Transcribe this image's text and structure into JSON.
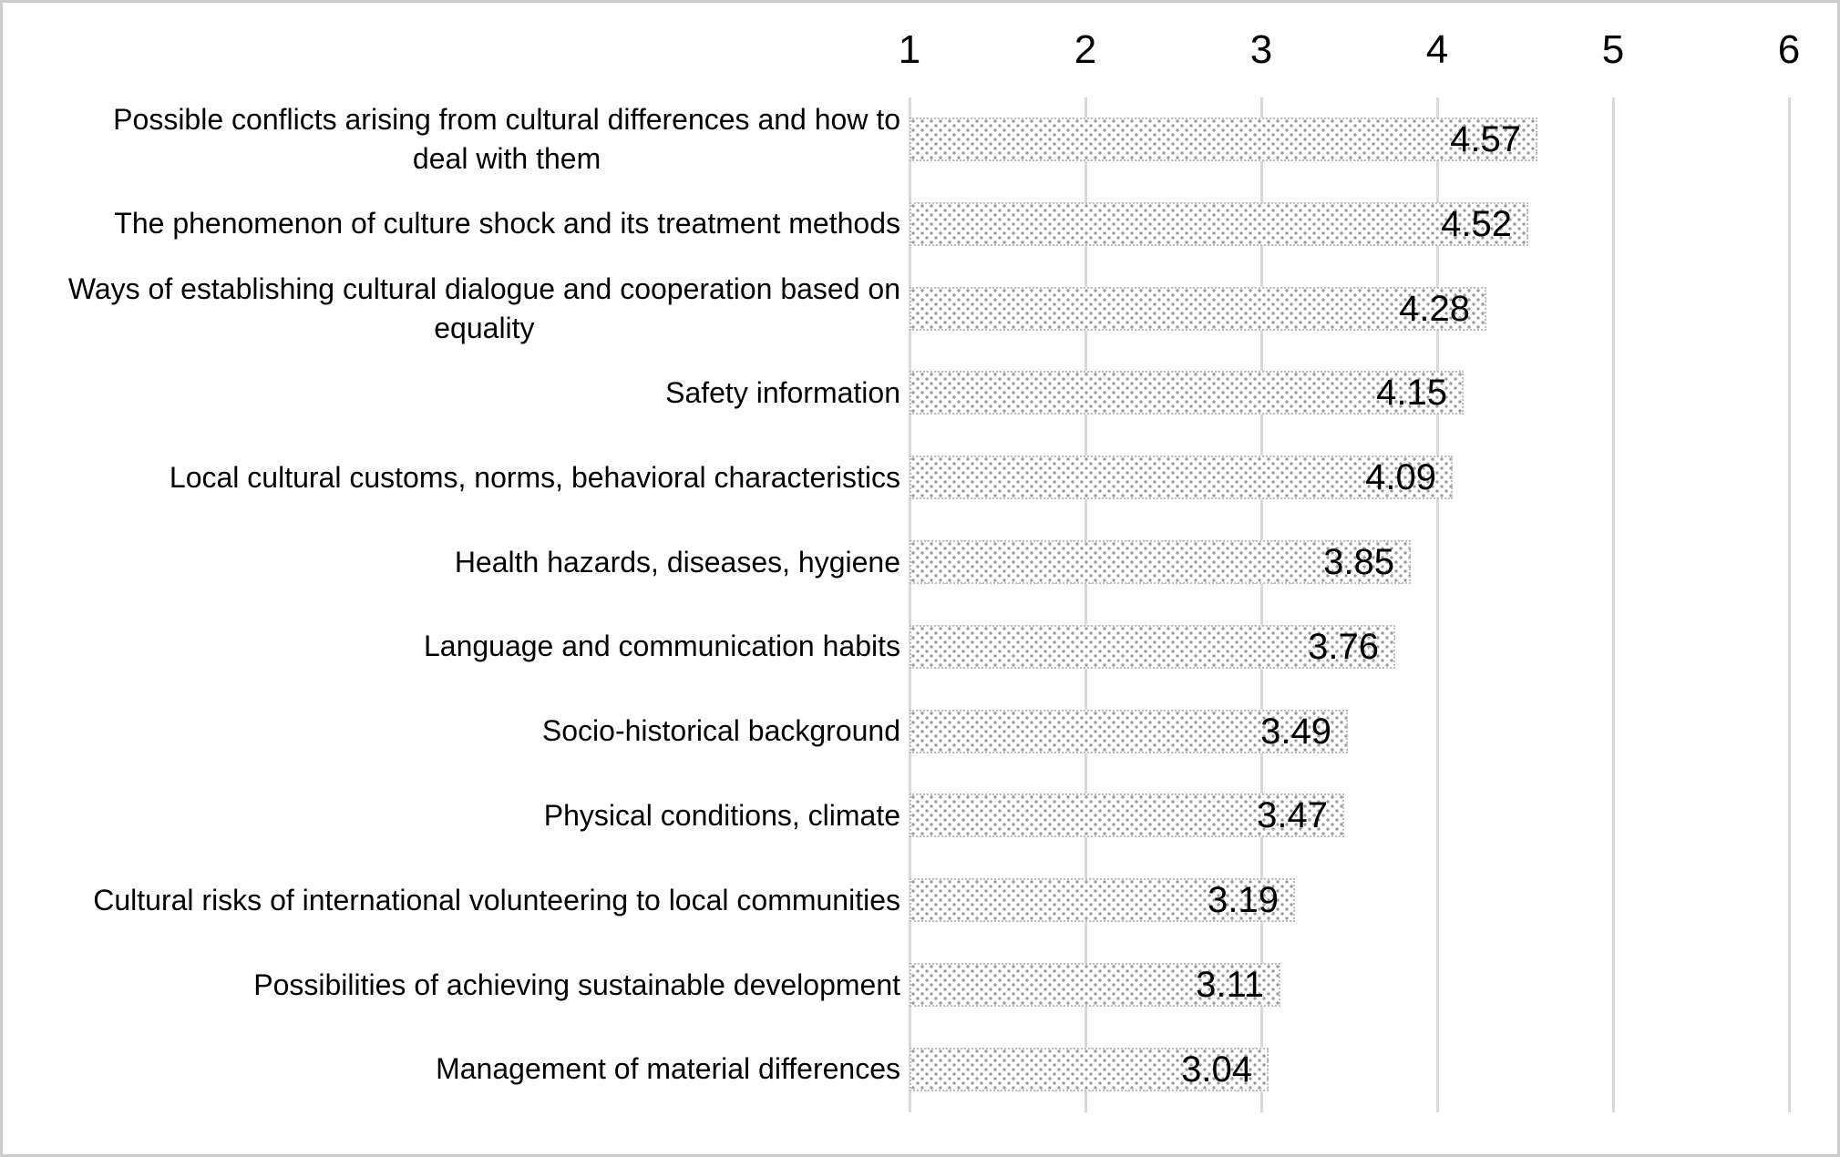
{
  "chart_data": {
    "type": "bar",
    "orientation": "horizontal",
    "title": "",
    "xlabel": "",
    "ylabel": "",
    "categories": [
      "Possible conflicts arising from cultural differences and how to deal with them",
      "The phenomenon of culture shock and its treatment methods",
      "Ways of establishing cultural dialogue and cooperation based on equality",
      "Safety information",
      "Local cultural customs, norms, behavioral characteristics",
      "Health hazards, diseases, hygiene",
      "Language and communication habits",
      "Socio-historical background",
      "Physical conditions, climate",
      "Cultural risks of international volunteering to local communities",
      "Possibilities of achieving sustainable development",
      "Management of material differences"
    ],
    "values": [
      4.57,
      4.52,
      4.28,
      4.15,
      4.09,
      3.85,
      3.76,
      3.49,
      3.47,
      3.19,
      3.11,
      3.04
    ],
    "value_labels": [
      "4.57",
      "4.52",
      "4.28",
      "4.15",
      "4.09",
      "3.85",
      "3.76",
      "3.49",
      "3.47",
      "3.19",
      "3.11",
      "3.04"
    ],
    "xlim": [
      1,
      6
    ],
    "x_ticks": [
      "1",
      "2",
      "3",
      "4",
      "5",
      "6"
    ],
    "tick_position": "top",
    "grid": "vertical gridlines only",
    "legend": "none",
    "bar_style": "white fill with gray polka-dot pattern and dotted outline, data labels inside right end of bars",
    "colors": {
      "bar_dot": "#9a9a9a",
      "bar_outline": "#bfbfbf",
      "gridline": "#d9d9d9",
      "text": "#000000",
      "figure_border": "#cccccc",
      "background": "#ffffff"
    }
  },
  "axis": {
    "ticks": [
      "1",
      "2",
      "3",
      "4",
      "5",
      "6"
    ]
  },
  "rows": [
    {
      "label": "Possible conflicts arising from cultural differences and how to\ndeal with them",
      "value": 4.57,
      "value_label": "4.57"
    },
    {
      "label": "The phenomenon of culture shock and its treatment methods",
      "value": 4.52,
      "value_label": "4.52"
    },
    {
      "label": "Ways of establishing cultural dialogue and cooperation based on\nequality",
      "value": 4.28,
      "value_label": "4.28"
    },
    {
      "label": "Safety information",
      "value": 4.15,
      "value_label": "4.15"
    },
    {
      "label": "Local cultural customs, norms, behavioral characteristics",
      "value": 4.09,
      "value_label": "4.09"
    },
    {
      "label": "Health hazards, diseases, hygiene",
      "value": 3.85,
      "value_label": "3.85"
    },
    {
      "label": "Language and communication habits",
      "value": 3.76,
      "value_label": "3.76"
    },
    {
      "label": "Socio-historical background",
      "value": 3.49,
      "value_label": "3.49"
    },
    {
      "label": "Physical conditions, climate",
      "value": 3.47,
      "value_label": "3.47"
    },
    {
      "label": "Cultural risks of international volunteering to local communities",
      "value": 3.19,
      "value_label": "3.19"
    },
    {
      "label": "Possibilities of achieving sustainable development",
      "value": 3.11,
      "value_label": "3.11"
    },
    {
      "label": "Management of material differences",
      "value": 3.04,
      "value_label": "3.04"
    }
  ]
}
